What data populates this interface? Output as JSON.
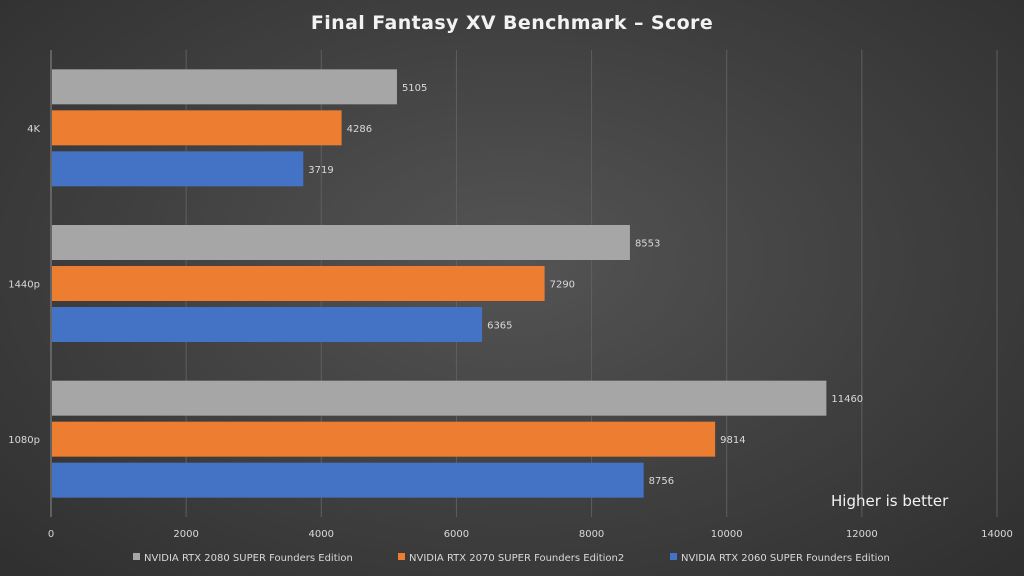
{
  "chart_data": {
    "type": "bar",
    "orientation": "horizontal",
    "title": "Final Fantasy XV Benchmark – Score",
    "categories": [
      "4K",
      "1440p",
      "1080p"
    ],
    "series": [
      {
        "name": "NVIDIA RTX 2080 SUPER Founders Edition",
        "color": "#a6a6a6",
        "values": [
          5105,
          8553,
          11460
        ]
      },
      {
        "name": "NVIDIA RTX 2070 SUPER Founders Edition2",
        "color": "#ed7d31",
        "values": [
          4286,
          7290,
          9814
        ]
      },
      {
        "name": "NVIDIA RTX 2060 SUPER Founders Edition",
        "color": "#4472c4",
        "values": [
          3719,
          6365,
          8756
        ]
      }
    ],
    "xlim": [
      0,
      14000
    ],
    "xticks": [
      0,
      2000,
      4000,
      6000,
      8000,
      10000,
      12000,
      14000
    ],
    "grid": true,
    "legend_position": "bottom",
    "annotation": "Higher is better"
  }
}
